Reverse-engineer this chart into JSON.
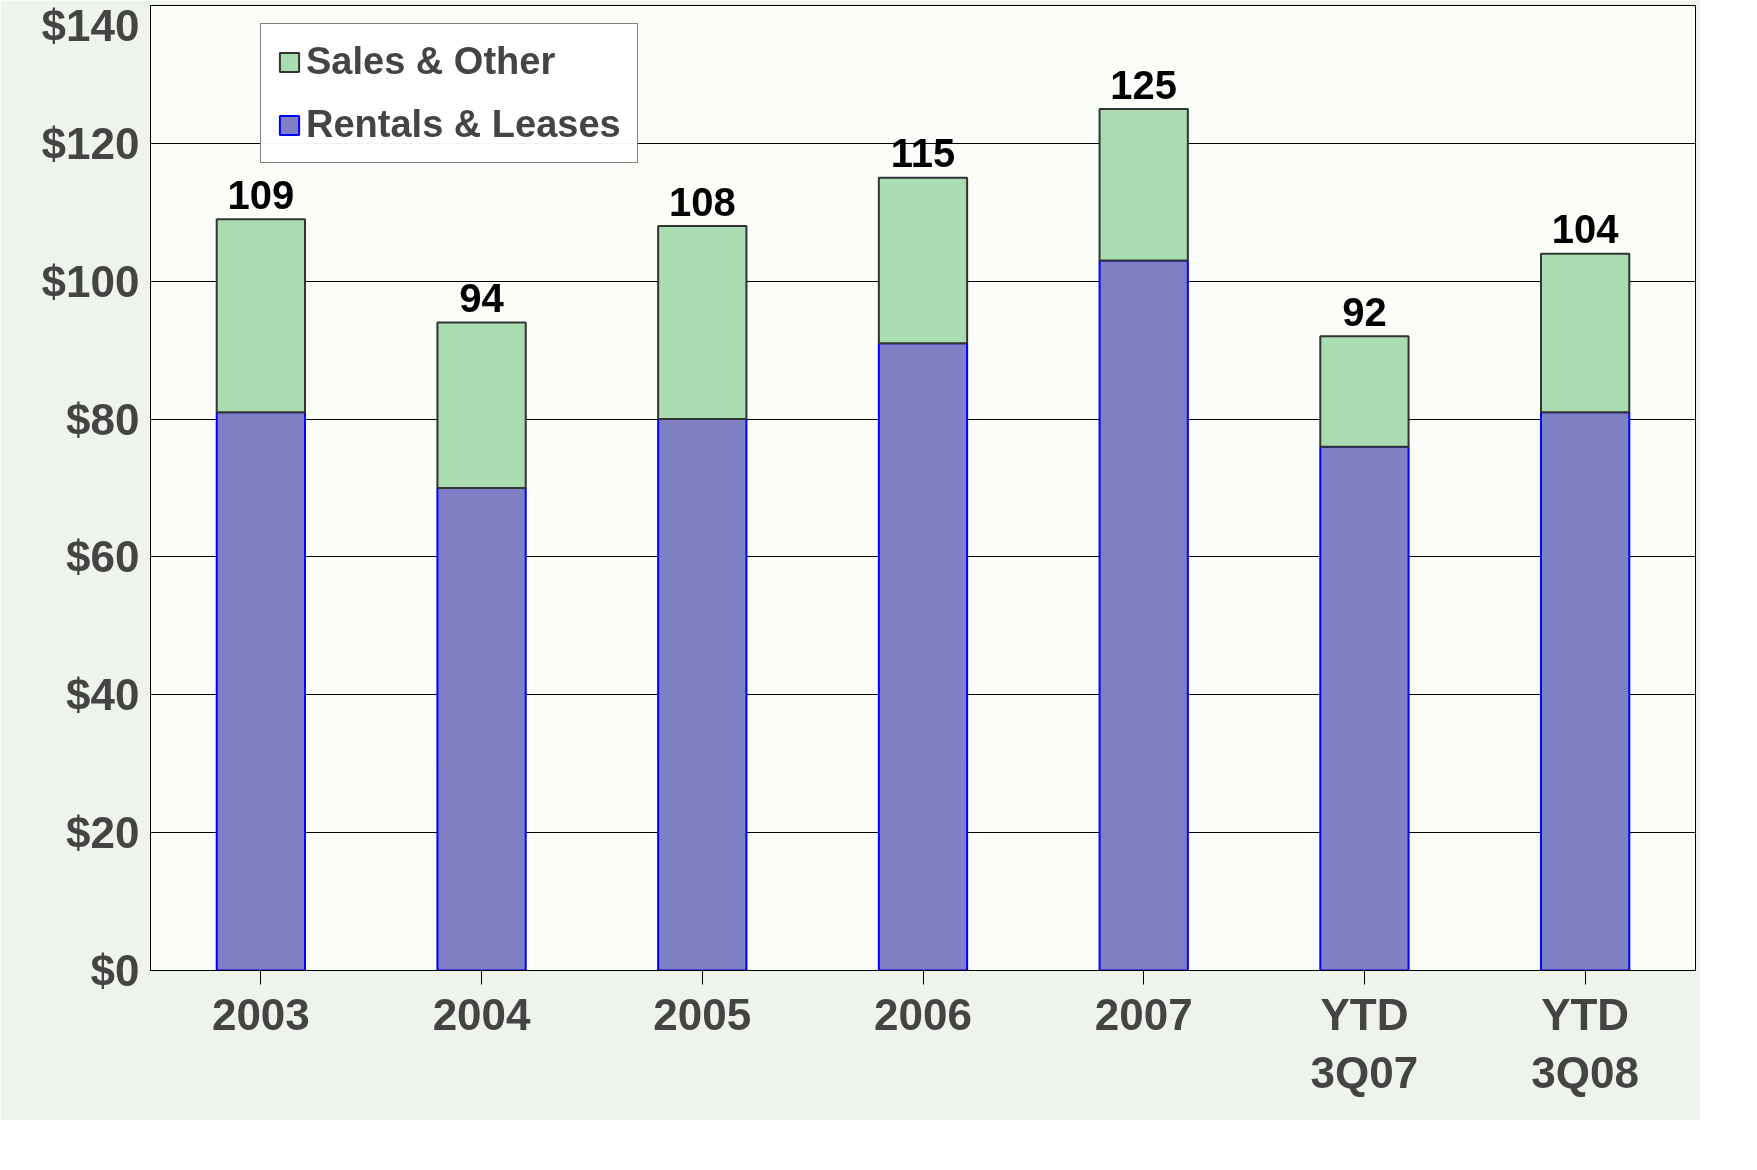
{
  "chart_data": {
    "type": "bar",
    "stacked": true,
    "categories": [
      "2003",
      "2004",
      "2005",
      "2006",
      "2007",
      "YTD\n3Q07",
      "YTD\n3Q08"
    ],
    "series": [
      {
        "name": "Rentals & Leases",
        "color": "#7f7fc6",
        "values": [
          81,
          70,
          80,
          91,
          103,
          76,
          81
        ]
      },
      {
        "name": "Sales & Other",
        "color": "#a9dcb0",
        "values": [
          28,
          24,
          28,
          24,
          22,
          16,
          23
        ]
      }
    ],
    "totals": [
      "109",
      "94",
      "108",
      "115",
      "125",
      "92",
      "104"
    ],
    "ylim": [
      0,
      140
    ],
    "yticks": [
      {
        "value": 0,
        "label": "$0"
      },
      {
        "value": 20,
        "label": "$20"
      },
      {
        "value": 40,
        "label": "$40"
      },
      {
        "value": 60,
        "label": "$60"
      },
      {
        "value": 80,
        "label": "$80"
      },
      {
        "value": 100,
        "label": "$100"
      },
      {
        "value": 120,
        "label": "$120"
      },
      {
        "value": 140,
        "label": "$140"
      }
    ],
    "grid": "y",
    "legend": "top left"
  }
}
